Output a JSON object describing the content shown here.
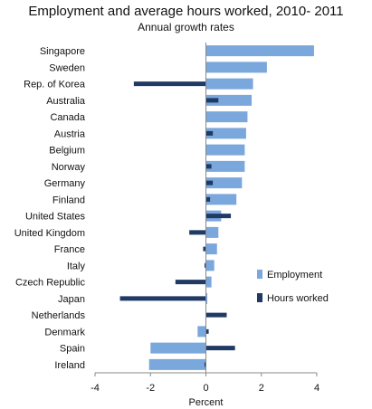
{
  "chart_data": {
    "type": "bar",
    "orientation": "horizontal",
    "title": "Employment and average hours worked, 2010- 2011",
    "subtitle": "Annual growth rates",
    "xlabel": "Percent",
    "xlim": [
      -4,
      4
    ],
    "xticks": [
      "-4",
      "-2",
      "0",
      "2",
      "4"
    ],
    "grid": false,
    "legend_position": "right",
    "categories": [
      "Singapore",
      "Sweden",
      "Rep. of Korea",
      "Australia",
      "Canada",
      "Austria",
      "Belgium",
      "Norway",
      "Germany",
      "Finland",
      "United States",
      "United Kingdom",
      "France",
      "Italy",
      "Czech Republic",
      "Japan",
      "Netherlands",
      "Denmark",
      "Spain",
      "Ireland"
    ],
    "series": [
      {
        "name": "Employment",
        "color": "#7aa7dc",
        "values": [
          3.9,
          2.2,
          1.7,
          1.65,
          1.5,
          1.45,
          1.4,
          1.4,
          1.3,
          1.1,
          0.55,
          0.45,
          0.4,
          0.3,
          0.2,
          0.05,
          0.0,
          -0.3,
          -2.0,
          -2.05
        ]
      },
      {
        "name": "Hours worked",
        "color": "#1f3a64",
        "values": [
          0.0,
          0.0,
          -2.6,
          0.45,
          0.0,
          0.25,
          0.0,
          0.2,
          0.25,
          0.15,
          0.9,
          -0.6,
          -0.1,
          -0.05,
          -1.1,
          -3.1,
          0.75,
          0.1,
          1.05,
          -0.05
        ]
      }
    ]
  }
}
